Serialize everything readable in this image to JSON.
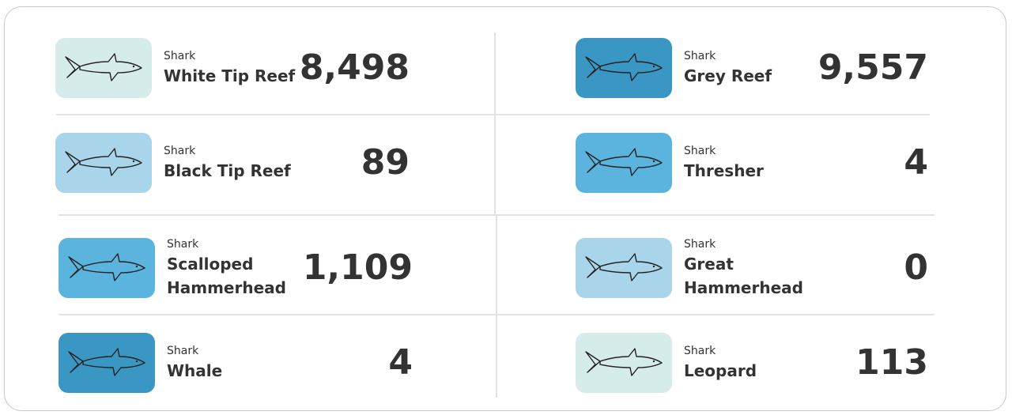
{
  "card": {
    "items": [
      {
        "label": "Shark",
        "name": "White Tip Reef",
        "count": "8,498"
      },
      {
        "label": "Shark",
        "name": "Grey Reef",
        "count": "9,557"
      },
      {
        "label": "Shark",
        "name": "Black Tip Reef",
        "count": "89"
      },
      {
        "label": "Shark",
        "name": "Thresher",
        "count": "4"
      },
      {
        "label": "Shark",
        "name": "Scalloped Hammerhead",
        "count": "1,109"
      },
      {
        "label": "Shark",
        "name": "Great Hammerhead",
        "count": "0"
      },
      {
        "label": "Shark",
        "name": "Whale",
        "count": "4"
      },
      {
        "label": "Shark",
        "name": "Leopard",
        "count": "113"
      }
    ]
  }
}
